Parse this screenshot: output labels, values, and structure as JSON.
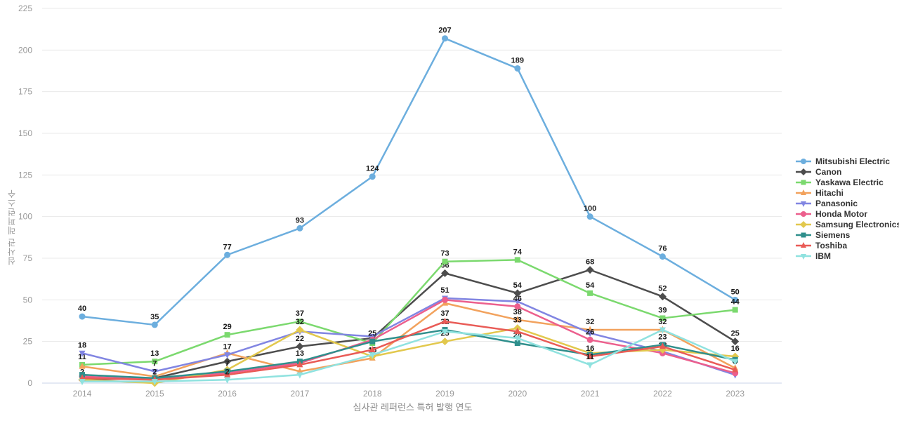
{
  "chart_data": {
    "type": "line",
    "title": "",
    "xlabel": "심사관 레퍼런스 특허 발행 연도",
    "ylabel": "심사관 레퍼런스수",
    "x_categories": [
      "2014",
      "2015",
      "2016",
      "2017",
      "2018",
      "2019",
      "2020",
      "2021",
      "2022",
      "2023"
    ],
    "y_ticks": [
      0,
      25,
      50,
      75,
      100,
      125,
      150,
      175,
      200,
      225
    ],
    "ylim": [
      0,
      225
    ],
    "grid": "horizontal",
    "legend_position": "right",
    "colors": {
      "grid_line": "#e8e8e8",
      "axis_line": "#c9d3e8",
      "tick_label": "#999999",
      "point_label": "#1a1a1a"
    },
    "series": [
      {
        "name": "Mitsubishi Electric",
        "color": "#6caede",
        "marker": "circle",
        "values": [
          40,
          35,
          77,
          93,
          124,
          207,
          189,
          100,
          76,
          50
        ],
        "labeled": [
          1,
          1,
          1,
          1,
          1,
          1,
          1,
          1,
          1,
          1
        ]
      },
      {
        "name": "Canon",
        "color": "#4d4d4d",
        "marker": "diamond",
        "values": [
          2,
          3,
          13,
          22,
          27,
          66,
          54,
          68,
          52,
          25
        ],
        "labeled": [
          1,
          0,
          0,
          1,
          0,
          1,
          1,
          1,
          1,
          1
        ]
      },
      {
        "name": "Yaskawa Electric",
        "color": "#7bd96e",
        "marker": "square",
        "values": [
          11,
          13,
          29,
          37,
          24,
          73,
          74,
          54,
          39,
          44
        ],
        "labeled": [
          1,
          1,
          1,
          1,
          0,
          1,
          1,
          1,
          1,
          1
        ]
      },
      {
        "name": "Hitachi",
        "color": "#f2a25d",
        "marker": "triangle-up",
        "values": [
          10,
          4,
          18,
          7,
          15,
          48,
          38,
          32,
          32,
          9
        ],
        "labeled": [
          0,
          0,
          0,
          1,
          1,
          0,
          1,
          1,
          0,
          0
        ]
      },
      {
        "name": "Panasonic",
        "color": "#8185e2",
        "marker": "triangle-down",
        "values": [
          18,
          7,
          17,
          31,
          28,
          51,
          49,
          30,
          19,
          5
        ],
        "labeled": [
          1,
          1,
          1,
          0,
          0,
          1,
          0,
          0,
          0,
          0
        ]
      },
      {
        "name": "Honda Motor",
        "color": "#ec5f8d",
        "marker": "circle",
        "values": [
          4,
          2,
          6,
          12,
          26,
          50,
          46,
          26,
          18,
          6
        ],
        "labeled": [
          0,
          1,
          0,
          0,
          0,
          0,
          1,
          1,
          1,
          0
        ]
      },
      {
        "name": "Samsung Electronics",
        "color": "#e2c84d",
        "marker": "diamond",
        "values": [
          2,
          0,
          8,
          32,
          16,
          25,
          33,
          18,
          20,
          16
        ],
        "labeled": [
          0,
          0,
          0,
          1,
          0,
          1,
          1,
          0,
          0,
          1
        ]
      },
      {
        "name": "Siemens",
        "color": "#2f8f8c",
        "marker": "square",
        "values": [
          5,
          3,
          7,
          13,
          25,
          32,
          24,
          17,
          23,
          14
        ],
        "labeled": [
          0,
          0,
          1,
          1,
          1,
          1,
          1,
          0,
          1,
          0
        ]
      },
      {
        "name": "Toshiba",
        "color": "#e95b56",
        "marker": "triangle-up",
        "values": [
          3,
          2,
          5,
          11,
          20,
          37,
          31,
          16,
          22,
          8
        ],
        "labeled": [
          0,
          0,
          0,
          0,
          0,
          1,
          0,
          1,
          0,
          1
        ]
      },
      {
        "name": "IBM",
        "color": "#8fe2df",
        "marker": "triangle-down",
        "values": [
          1,
          1,
          2,
          5,
          17,
          31,
          27,
          11,
          32,
          13
        ],
        "labeled": [
          0,
          0,
          1,
          0,
          0,
          0,
          0,
          1,
          1,
          0
        ]
      }
    ]
  }
}
